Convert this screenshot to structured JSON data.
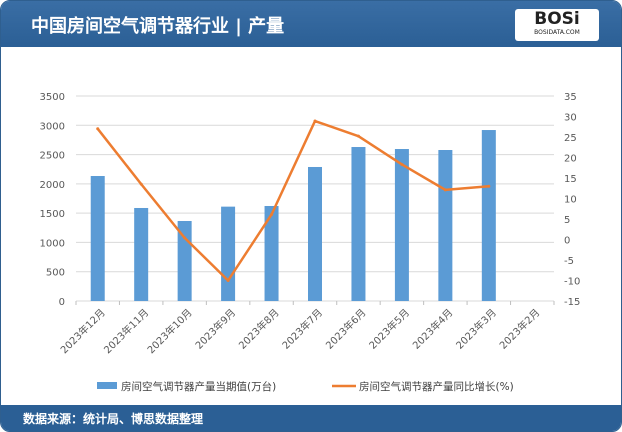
{
  "header": {
    "title": "中国房间空气调节器行业 | 产量",
    "logo_text": "BOSi",
    "logo_sub": "BOSIDATA.COM"
  },
  "footer": {
    "source": "数据来源：统计局、博思数据整理"
  },
  "colors": {
    "bar": "#5b9bd5",
    "line": "#ed7d31",
    "header": "#2b5f95"
  },
  "chart_data": {
    "type": "bar+line",
    "categories": [
      "2023年12月",
      "2023年11月",
      "2023年10月",
      "2023年9月",
      "2023年8月",
      "2023年7月",
      "2023年6月",
      "2023年5月",
      "2023年4月",
      "2023年3月",
      "2023年2月"
    ],
    "series": [
      {
        "name": "房间空气调节器产量当期值(万台)",
        "type": "bar",
        "axis": "left",
        "values": [
          2134,
          1588,
          1366,
          1611,
          1622,
          2288,
          2629,
          2595,
          2578,
          2919,
          null
        ]
      },
      {
        "name": "房间空气调节器产量同比增长(%)",
        "type": "line",
        "axis": "right",
        "values": [
          27,
          13.5,
          0.4,
          -10,
          6.1,
          28.9,
          25.2,
          18.3,
          12.1,
          13,
          null
        ]
      }
    ],
    "left_axis": {
      "range": [
        0,
        3500
      ],
      "ticks": [
        0,
        500,
        1000,
        1500,
        2000,
        2500,
        3000,
        3500
      ]
    },
    "right_axis": {
      "range": [
        -15,
        35
      ],
      "ticks": [
        -15,
        -10,
        -5,
        0,
        5,
        10,
        15,
        20,
        25,
        30,
        35
      ]
    },
    "grid": true,
    "legend": "bottom"
  }
}
